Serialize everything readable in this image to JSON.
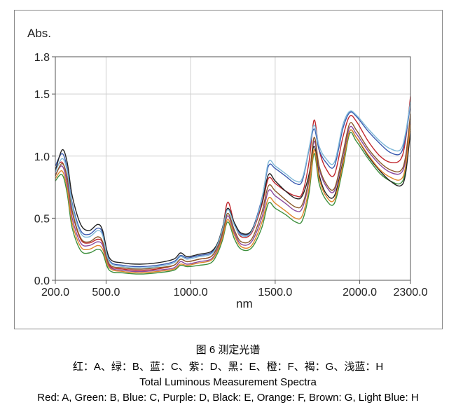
{
  "chart_data": {
    "type": "line",
    "ylabel": "Abs.",
    "xlabel": "nm",
    "xlim": [
      200,
      2300
    ],
    "ylim": [
      0,
      1.8
    ],
    "x_ticks": [
      200,
      500,
      1000,
      1500,
      2000,
      2300
    ],
    "x_tick_labels": [
      "200.0",
      "500.0",
      "1000.0",
      "1500.0",
      "2000.0",
      "2300.0"
    ],
    "y_ticks": [
      0,
      0.5,
      1.0,
      1.5,
      1.8
    ],
    "y_tick_labels": [
      "0.0",
      "0.5",
      "1.0",
      "1.5",
      "1.8"
    ],
    "grid": true,
    "series": [
      {
        "name": "A",
        "label": "Red",
        "color": "#c0272d",
        "x": [
          200,
          240,
          270,
          300,
          350,
          400,
          450,
          480,
          520,
          600,
          700,
          800,
          900,
          940,
          980,
          1050,
          1120,
          1160,
          1190,
          1220,
          1260,
          1300,
          1360,
          1420,
          1460,
          1500,
          1560,
          1620,
          1660,
          1700,
          1730,
          1760,
          1800,
          1850,
          1900,
          1940,
          1980,
          2050,
          2120,
          2180,
          2240,
          2270,
          2300
        ],
        "y": [
          0.9,
          0.95,
          0.82,
          0.55,
          0.33,
          0.3,
          0.33,
          0.3,
          0.12,
          0.09,
          0.08,
          0.09,
          0.12,
          0.17,
          0.15,
          0.17,
          0.19,
          0.28,
          0.42,
          0.63,
          0.45,
          0.35,
          0.38,
          0.6,
          0.82,
          0.78,
          0.72,
          0.68,
          0.7,
          0.95,
          1.29,
          1.05,
          0.9,
          0.85,
          1.15,
          1.32,
          1.28,
          1.12,
          1.0,
          0.95,
          0.97,
          1.12,
          1.48
        ]
      },
      {
        "name": "B",
        "label": "Green",
        "color": "#3d8f3d",
        "x": [
          200,
          240,
          270,
          300,
          350,
          400,
          450,
          480,
          520,
          600,
          700,
          800,
          900,
          940,
          980,
          1050,
          1120,
          1160,
          1190,
          1220,
          1260,
          1300,
          1360,
          1420,
          1460,
          1500,
          1560,
          1620,
          1660,
          1700,
          1730,
          1760,
          1800,
          1850,
          1900,
          1940,
          1980,
          2050,
          2120,
          2180,
          2240,
          2270,
          2300
        ],
        "y": [
          0.8,
          0.85,
          0.7,
          0.42,
          0.24,
          0.22,
          0.25,
          0.22,
          0.08,
          0.06,
          0.05,
          0.06,
          0.08,
          0.12,
          0.11,
          0.12,
          0.14,
          0.22,
          0.33,
          0.47,
          0.33,
          0.25,
          0.26,
          0.42,
          0.62,
          0.58,
          0.53,
          0.47,
          0.48,
          0.7,
          1.02,
          0.78,
          0.65,
          0.62,
          0.9,
          1.18,
          1.12,
          0.98,
          0.86,
          0.8,
          0.78,
          0.88,
          1.22
        ]
      },
      {
        "name": "C",
        "label": "Blue",
        "color": "#3b5bb0",
        "x": [
          200,
          240,
          270,
          300,
          350,
          400,
          450,
          480,
          520,
          600,
          700,
          800,
          900,
          940,
          980,
          1050,
          1120,
          1160,
          1190,
          1220,
          1260,
          1300,
          1360,
          1420,
          1460,
          1500,
          1560,
          1620,
          1660,
          1700,
          1730,
          1760,
          1800,
          1850,
          1900,
          1940,
          1980,
          2050,
          2120,
          2180,
          2240,
          2270,
          2300
        ],
        "y": [
          0.92,
          1.02,
          0.9,
          0.62,
          0.4,
          0.37,
          0.42,
          0.38,
          0.16,
          0.12,
          0.11,
          0.12,
          0.15,
          0.2,
          0.18,
          0.2,
          0.22,
          0.3,
          0.43,
          0.58,
          0.45,
          0.37,
          0.4,
          0.65,
          0.92,
          0.9,
          0.84,
          0.78,
          0.8,
          1.05,
          1.22,
          1.05,
          0.95,
          0.92,
          1.22,
          1.35,
          1.32,
          1.2,
          1.1,
          1.03,
          1.02,
          1.15,
          1.42
        ]
      },
      {
        "name": "D",
        "label": "Purple",
        "color": "#8b4a9c",
        "x": [
          200,
          240,
          270,
          300,
          350,
          400,
          450,
          480,
          520,
          600,
          700,
          800,
          900,
          940,
          980,
          1050,
          1120,
          1160,
          1190,
          1220,
          1260,
          1300,
          1360,
          1420,
          1460,
          1500,
          1560,
          1620,
          1660,
          1700,
          1730,
          1760,
          1800,
          1850,
          1900,
          1940,
          1980,
          2050,
          2120,
          2180,
          2240,
          2270,
          2300
        ],
        "y": [
          0.85,
          0.92,
          0.78,
          0.5,
          0.3,
          0.28,
          0.31,
          0.28,
          0.11,
          0.08,
          0.07,
          0.08,
          0.1,
          0.15,
          0.13,
          0.15,
          0.17,
          0.25,
          0.37,
          0.52,
          0.38,
          0.29,
          0.31,
          0.5,
          0.72,
          0.68,
          0.62,
          0.56,
          0.58,
          0.8,
          1.12,
          0.9,
          0.76,
          0.72,
          1.0,
          1.23,
          1.18,
          1.04,
          0.93,
          0.87,
          0.86,
          0.96,
          1.3
        ]
      },
      {
        "name": "E",
        "label": "Black",
        "color": "#222222",
        "x": [
          200,
          240,
          270,
          300,
          350,
          400,
          450,
          480,
          520,
          600,
          700,
          800,
          900,
          940,
          980,
          1050,
          1120,
          1160,
          1190,
          1220,
          1260,
          1300,
          1360,
          1420,
          1460,
          1500,
          1560,
          1620,
          1660,
          1700,
          1730,
          1760,
          1800,
          1850,
          1900,
          1940,
          1980,
          2050,
          2120,
          2180,
          2240,
          2270,
          2300
        ],
        "y": [
          0.88,
          1.05,
          0.95,
          0.68,
          0.45,
          0.4,
          0.45,
          0.4,
          0.18,
          0.14,
          0.13,
          0.14,
          0.17,
          0.22,
          0.19,
          0.21,
          0.23,
          0.3,
          0.43,
          0.58,
          0.46,
          0.38,
          0.4,
          0.62,
          0.85,
          0.8,
          0.72,
          0.66,
          0.68,
          0.85,
          1.08,
          0.85,
          0.7,
          0.68,
          0.95,
          1.2,
          1.15,
          1.0,
          0.88,
          0.8,
          0.76,
          0.85,
          1.2
        ]
      },
      {
        "name": "F",
        "label": "Orange",
        "color": "#e0862b",
        "x": [
          200,
          240,
          270,
          300,
          350,
          400,
          450,
          480,
          520,
          600,
          700,
          800,
          900,
          940,
          980,
          1050,
          1120,
          1160,
          1190,
          1220,
          1260,
          1300,
          1360,
          1420,
          1460,
          1500,
          1560,
          1620,
          1660,
          1700,
          1730,
          1760,
          1800,
          1850,
          1900,
          1940,
          1980,
          2050,
          2120,
          2180,
          2240,
          2270,
          2300
        ],
        "y": [
          0.82,
          0.88,
          0.74,
          0.46,
          0.27,
          0.25,
          0.28,
          0.25,
          0.1,
          0.07,
          0.06,
          0.07,
          0.09,
          0.13,
          0.12,
          0.14,
          0.16,
          0.24,
          0.35,
          0.49,
          0.36,
          0.27,
          0.28,
          0.46,
          0.66,
          0.62,
          0.56,
          0.5,
          0.52,
          0.74,
          1.05,
          0.82,
          0.68,
          0.65,
          0.93,
          1.2,
          1.15,
          1.01,
          0.89,
          0.83,
          0.81,
          0.91,
          1.26
        ]
      },
      {
        "name": "G",
        "label": "Brown",
        "color": "#8b5a2b",
        "x": [
          200,
          240,
          270,
          300,
          350,
          400,
          450,
          480,
          520,
          600,
          700,
          800,
          900,
          940,
          980,
          1050,
          1120,
          1160,
          1190,
          1220,
          1260,
          1300,
          1360,
          1420,
          1460,
          1500,
          1560,
          1620,
          1660,
          1700,
          1730,
          1760,
          1800,
          1850,
          1900,
          1940,
          1980,
          2050,
          2120,
          2180,
          2240,
          2270,
          2300
        ],
        "y": [
          0.84,
          0.94,
          0.83,
          0.56,
          0.34,
          0.31,
          0.35,
          0.31,
          0.13,
          0.1,
          0.09,
          0.1,
          0.12,
          0.17,
          0.15,
          0.17,
          0.19,
          0.27,
          0.39,
          0.54,
          0.4,
          0.31,
          0.33,
          0.54,
          0.76,
          0.72,
          0.65,
          0.59,
          0.61,
          0.82,
          1.15,
          0.92,
          0.78,
          0.74,
          1.02,
          1.26,
          1.21,
          1.06,
          0.95,
          0.89,
          0.88,
          0.99,
          1.34
        ]
      },
      {
        "name": "H",
        "label": "Light Blue",
        "color": "#7fb8d8",
        "x": [
          200,
          240,
          270,
          300,
          350,
          400,
          450,
          480,
          520,
          600,
          700,
          800,
          900,
          940,
          980,
          1050,
          1120,
          1160,
          1190,
          1220,
          1260,
          1300,
          1360,
          1420,
          1460,
          1500,
          1560,
          1620,
          1660,
          1700,
          1730,
          1760,
          1800,
          1850,
          1900,
          1940,
          1980,
          2050,
          2120,
          2180,
          2240,
          2270,
          2300
        ],
        "y": [
          0.87,
          0.98,
          0.88,
          0.6,
          0.38,
          0.35,
          0.4,
          0.36,
          0.15,
          0.11,
          0.1,
          0.11,
          0.14,
          0.19,
          0.17,
          0.19,
          0.21,
          0.29,
          0.42,
          0.57,
          0.44,
          0.36,
          0.39,
          0.64,
          0.95,
          0.92,
          0.86,
          0.8,
          0.82,
          1.06,
          1.25,
          1.08,
          0.98,
          0.95,
          1.25,
          1.36,
          1.33,
          1.22,
          1.12,
          1.06,
          1.05,
          1.18,
          1.44
        ]
      }
    ]
  },
  "caption": {
    "title_cn": "图 6  测定光谱",
    "legend_cn": "红：A、绿：B、蓝：C、紫：D、黑：E、橙：F、褐：G、浅蓝：H",
    "title_en": "Total Luminous Measurement Spectra",
    "legend_en": "Red: A, Green: B, Blue: C, Purple: D, Black: E, Orange: F, Brown: G, Light Blue: H"
  }
}
